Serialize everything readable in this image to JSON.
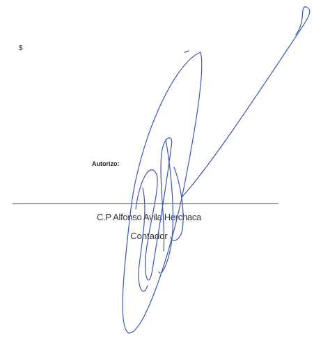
{
  "header": {
    "currency": "$"
  },
  "signature_block": {
    "label": "Autorizo:",
    "name": "C.P Alfonso Avila Herchaca",
    "role": "Contador"
  }
}
